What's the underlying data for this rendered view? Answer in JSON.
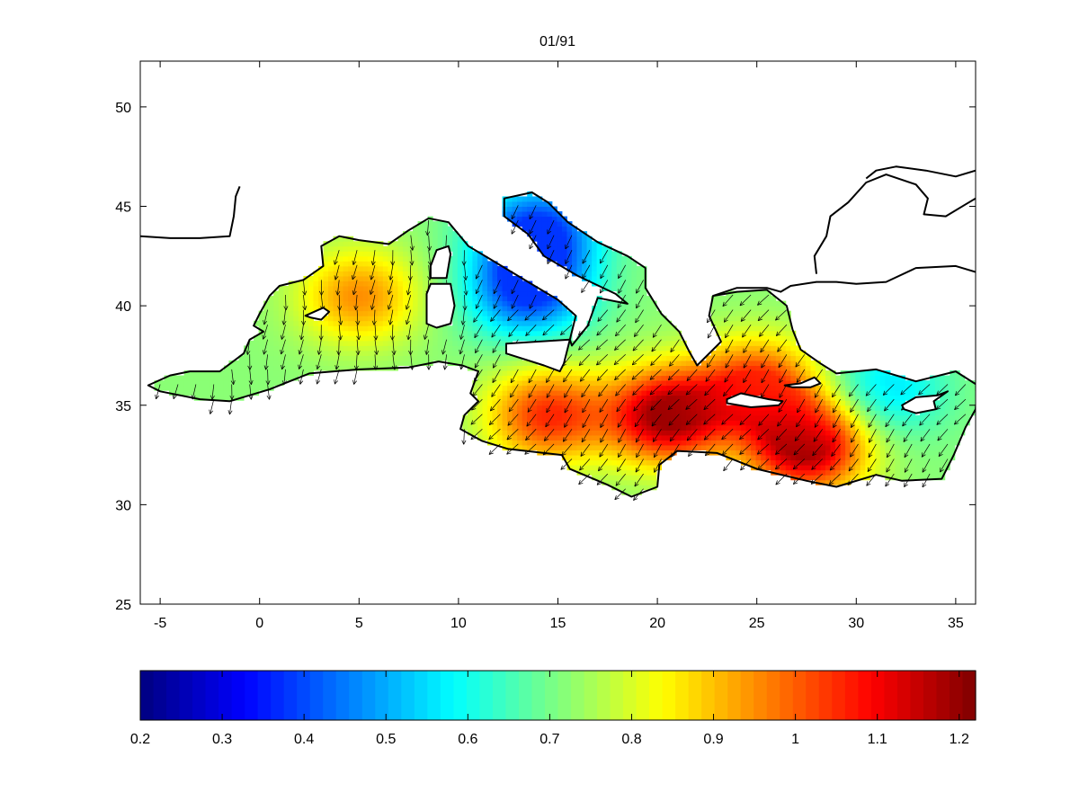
{
  "chart_data": {
    "type": "heatmap",
    "title": "01/91",
    "xlim": [
      -6,
      36
    ],
    "ylim": [
      25,
      52.3
    ],
    "x_ticks": [
      -5,
      0,
      5,
      10,
      15,
      20,
      25,
      30,
      35
    ],
    "y_ticks": [
      25,
      30,
      35,
      40,
      45,
      50
    ],
    "x_tick_labels": [
      "-5",
      "0",
      "5",
      "10",
      "15",
      "20",
      "25",
      "30",
      "35"
    ],
    "y_tick_labels": [
      "25",
      "30",
      "35",
      "40",
      "45",
      "50"
    ],
    "colormap": "jet",
    "colorbar": {
      "range": [
        0.2,
        1.22
      ],
      "ticks": [
        0.2,
        0.3,
        0.4,
        0.5,
        0.6,
        0.7,
        0.8,
        0.9,
        1.0,
        1.1,
        1.2
      ],
      "tick_labels": [
        "0.2",
        "0.3",
        "0.4",
        "0.5",
        "0.6",
        "0.7",
        "0.8",
        "0.9",
        "1",
        "1.1",
        "1.2"
      ],
      "placement": "bottom"
    },
    "field_peaks": [
      {
        "lon": 5,
        "lat": 40.5,
        "value": 0.95
      },
      {
        "lon": 20.5,
        "lat": 34.5,
        "value": 1.2
      },
      {
        "lon": 27.5,
        "lat": 33,
        "value": 1.2
      },
      {
        "lon": 25,
        "lat": 36,
        "value": 1.05
      },
      {
        "lon": 14.5,
        "lat": 34.5,
        "value": 1.05
      }
    ],
    "field_lows": [
      {
        "lon": 14,
        "lat": 43.8,
        "value": 0.38
      },
      {
        "lon": 13.5,
        "lat": 40.8,
        "value": 0.38
      },
      {
        "lon": 31.5,
        "lat": 35.8,
        "value": 0.55
      }
    ],
    "vector_field": "arrows mostly southward in western basin, south-westward in central and eastern basin"
  }
}
